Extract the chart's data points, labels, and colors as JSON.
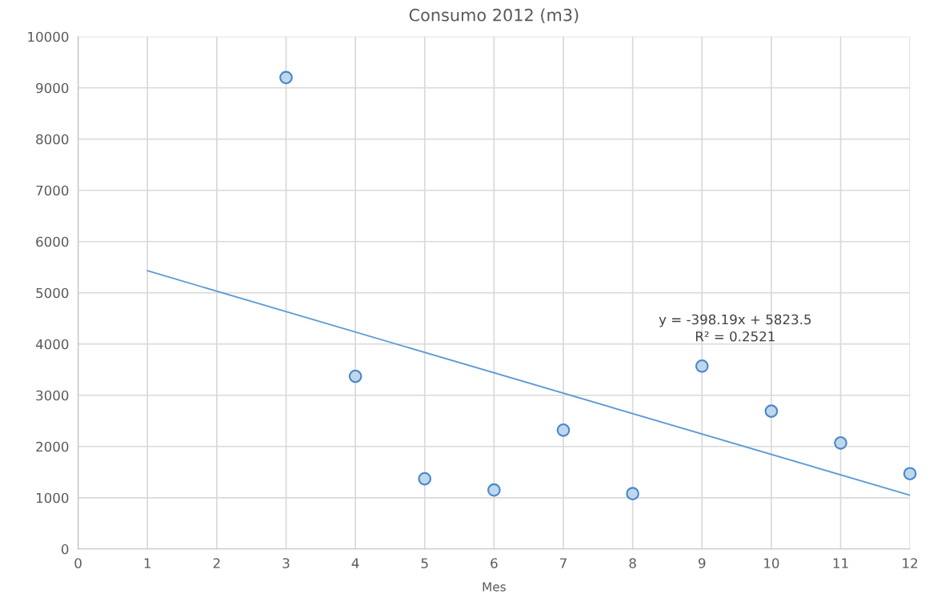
{
  "chart_data": {
    "type": "scatter",
    "title": "Consumo 2012 (m3)",
    "xlabel": "Mes",
    "series": [
      {
        "color": "#bdd7ee",
        "marker": "circle",
        "x": [
          3,
          4,
          5,
          6,
          7,
          8,
          9,
          10,
          11,
          12
        ],
        "values": [
          9200,
          3370,
          1370,
          1150,
          2320,
          1080,
          3570,
          2690,
          2070,
          1470
        ]
      },
      {
        "type": "line",
        "color": "#5b9bd5",
        "x": [
          1,
          12
        ],
        "values": [
          5430,
          1050
        ]
      }
    ],
    "annotations": [
      "y = -398.19x + 5823.5\nR² = 0.2521"
    ],
    "xlim": [
      0,
      12
    ],
    "xticks": [
      0,
      1,
      2,
      3,
      4,
      5,
      6,
      7,
      8,
      9,
      10,
      11,
      12
    ],
    "ylim": [
      0,
      10000
    ],
    "yticks": [
      0,
      1000,
      2000,
      3000,
      4000,
      5000,
      6000,
      7000,
      8000,
      9000,
      10000
    ],
    "grid": true,
    "legend": false
  }
}
